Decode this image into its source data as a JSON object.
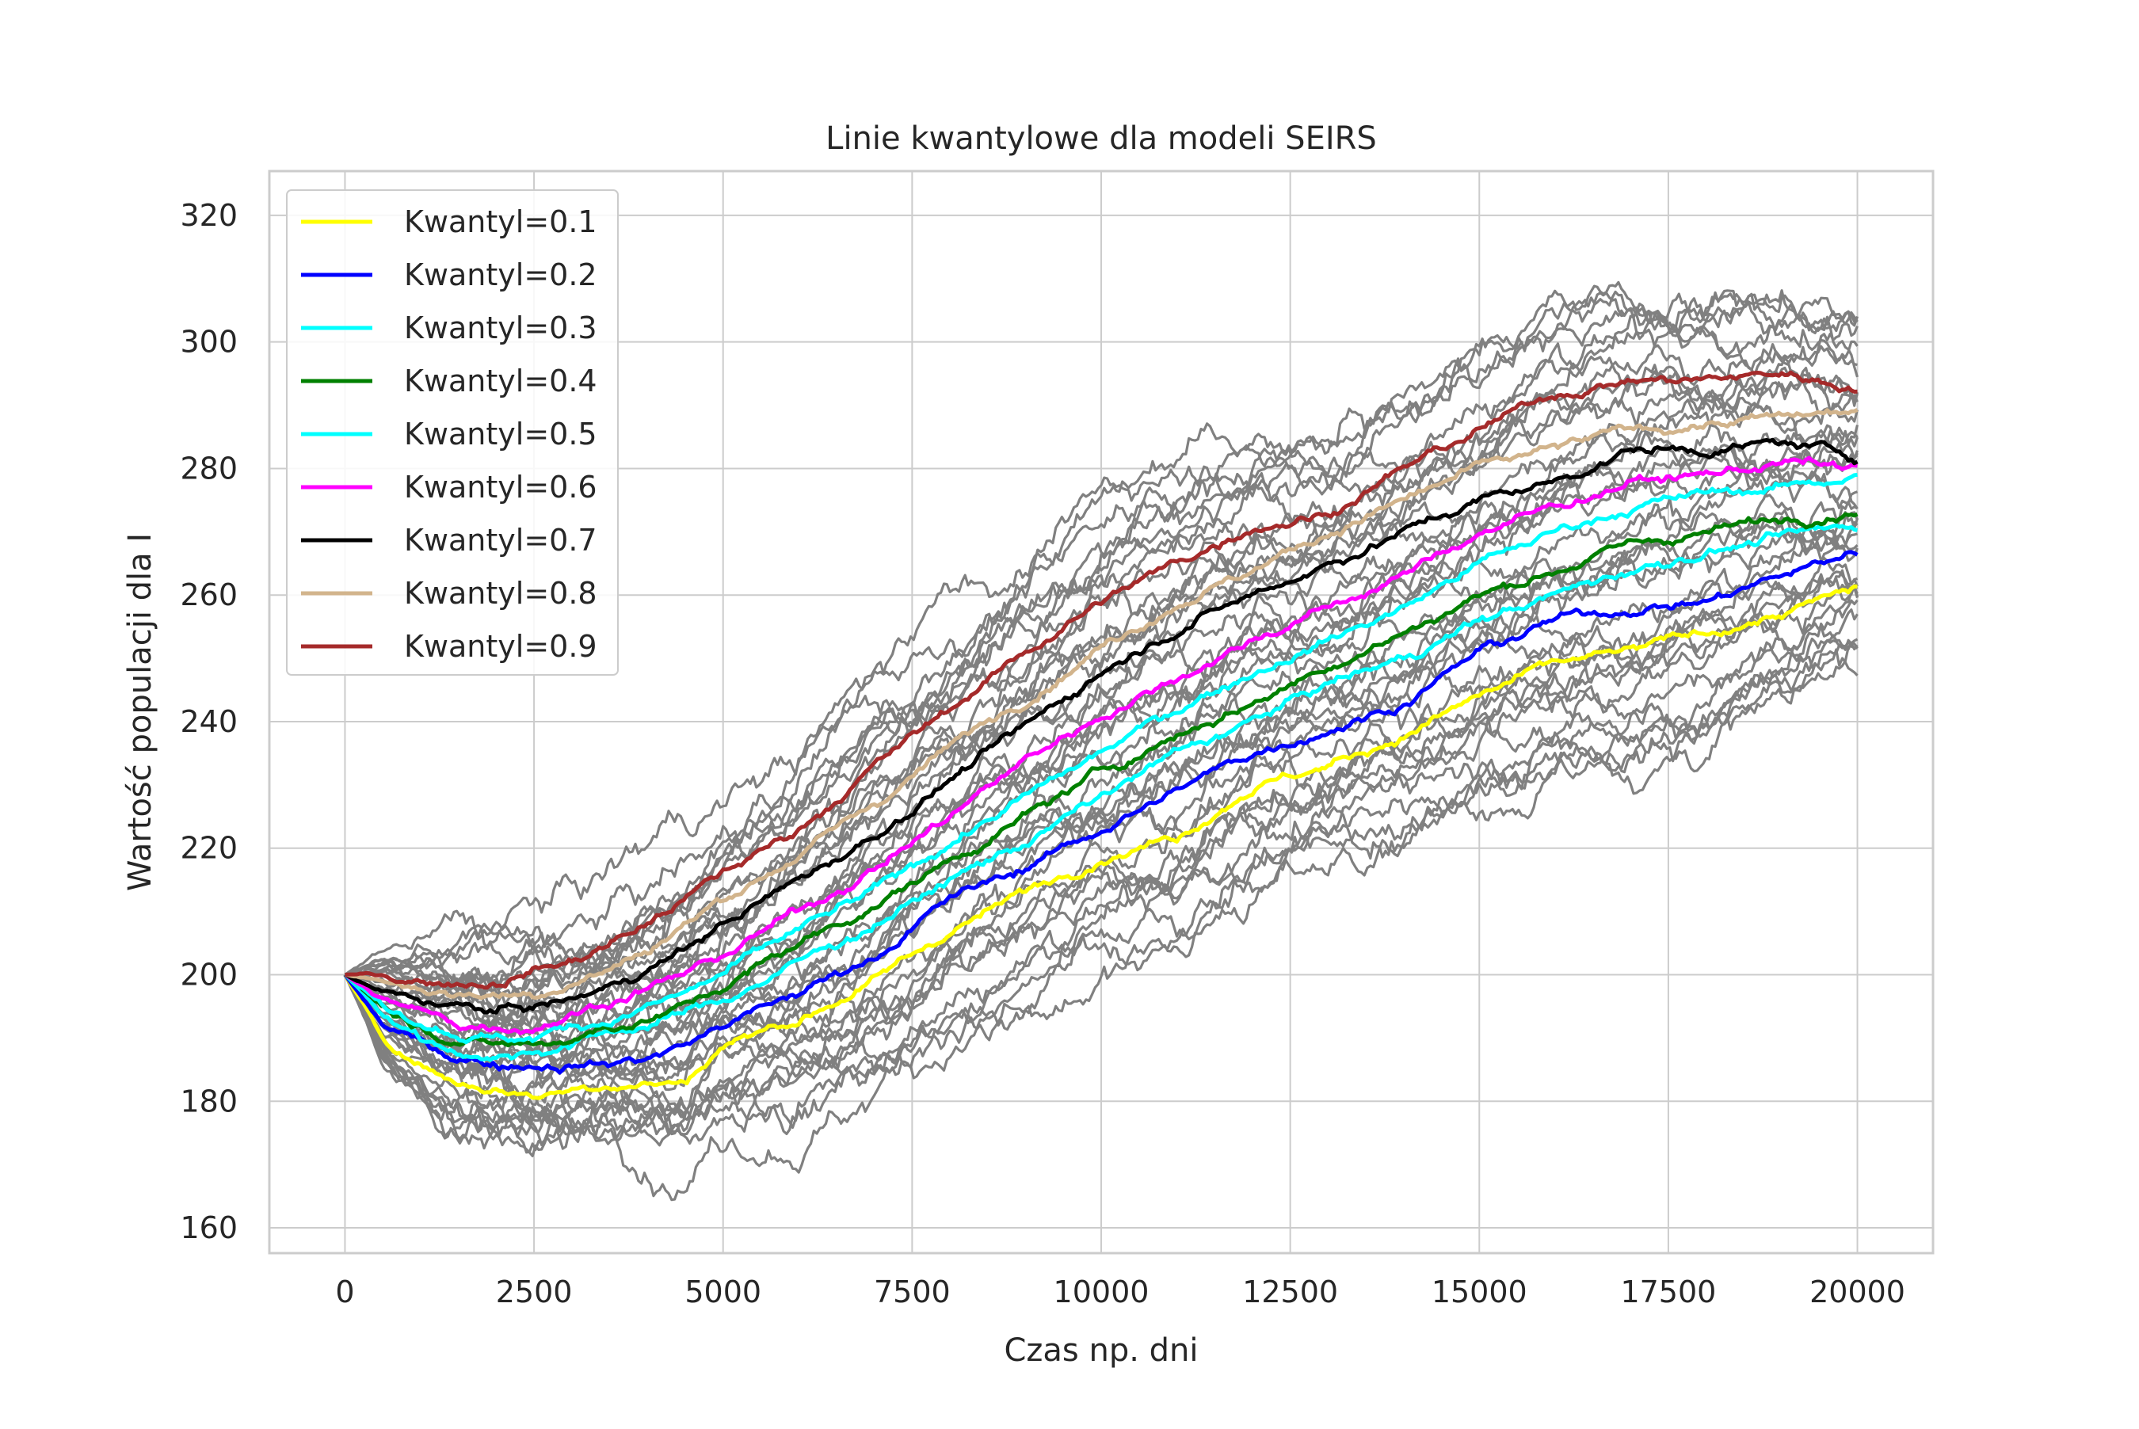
{
  "chart_data": {
    "type": "line",
    "title": "Linie kwantylowe dla modeli SEIRS",
    "xlabel": "Czas np. dni",
    "ylabel": "Wartość populacji dla I",
    "xlim": [
      -1000,
      21000
    ],
    "ylim": [
      156,
      327
    ],
    "xticks": [
      0,
      2500,
      5000,
      7500,
      10000,
      12500,
      15000,
      17500,
      20000
    ],
    "yticks": [
      160,
      180,
      200,
      220,
      240,
      260,
      280,
      300,
      320
    ],
    "xtick_labels": [
      "0",
      "2500",
      "5000",
      "7500",
      "10000",
      "12500",
      "15000",
      "17500",
      "20000"
    ],
    "ytick_labels": [
      "160",
      "180",
      "200",
      "220",
      "240",
      "260",
      "280",
      "300",
      "320"
    ],
    "grid": true,
    "legend_position": "upper-left",
    "background_simulations": {
      "color": "#808080",
      "count": 40,
      "description": ""
    },
    "x": [
      0,
      500,
      1000,
      1500,
      2000,
      2500,
      3000,
      3500,
      4000,
      4500,
      5000,
      6000,
      7000,
      8000,
      9000,
      10000,
      11000,
      12000,
      13000,
      14000,
      15000,
      16000,
      17000,
      18000,
      19000,
      20000
    ],
    "series": [
      {
        "name": "Kwantyl=0.1",
        "color": "#ffff00",
        "values": [
          200,
          190,
          186,
          183,
          182,
          181,
          182,
          183,
          183,
          183,
          189,
          193,
          199,
          207,
          213,
          219,
          222,
          230,
          233,
          238,
          244,
          249,
          251,
          254,
          257,
          261
        ]
      },
      {
        "name": "Kwantyl=0.2",
        "color": "#0000ff",
        "values": [
          200,
          192,
          189,
          187,
          186,
          186,
          186,
          186,
          187,
          189,
          192,
          197,
          203,
          212,
          217,
          223,
          229,
          235,
          239,
          243,
          251,
          256,
          258,
          259,
          263,
          267
        ]
      },
      {
        "name": "Kwantyl=0.3",
        "color": "#00ffff",
        "values": [
          200,
          194,
          190,
          188,
          187,
          188,
          189,
          191,
          192,
          194,
          196,
          202,
          208,
          215,
          221,
          228,
          235,
          240,
          246,
          250,
          256,
          260,
          264,
          267,
          269,
          271
        ]
      },
      {
        "name": "Kwantyl=0.4",
        "color": "#008000",
        "values": [
          200,
          195,
          192,
          190,
          189,
          189,
          190,
          192,
          193,
          195,
          198,
          205,
          211,
          218,
          225,
          232,
          238,
          243,
          249,
          254,
          260,
          264,
          268,
          270,
          272,
          274
        ]
      },
      {
        "name": "Kwantyl=0.5",
        "color": "#00ffff",
        "values": [
          200,
          195,
          193,
          191,
          190,
          190,
          192,
          193,
          195,
          197,
          200,
          207,
          213,
          221,
          228,
          235,
          242,
          248,
          253,
          258,
          265,
          270,
          274,
          276,
          277,
          279
        ]
      },
      {
        "name": "Kwantyl=0.6",
        "color": "#ff00ff",
        "values": [
          200,
          196,
          194,
          192,
          192,
          192,
          194,
          196,
          198,
          200,
          203,
          210,
          217,
          225,
          234,
          241,
          247,
          253,
          258,
          263,
          270,
          274,
          278,
          279,
          281,
          280
        ]
      },
      {
        "name": "Kwantyl=0.7",
        "color": "#000000",
        "values": [
          200,
          197,
          196,
          195,
          194,
          195,
          196,
          198,
          201,
          204,
          208,
          215,
          222,
          231,
          239,
          248,
          255,
          260,
          265,
          270,
          275,
          278,
          283,
          283,
          284,
          282
        ]
      },
      {
        "name": "Kwantyl=0.8",
        "color": "#d2b48c",
        "values": [
          200,
          199,
          198,
          197,
          197,
          197,
          199,
          201,
          204,
          208,
          212,
          219,
          227,
          236,
          244,
          252,
          259,
          264,
          270,
          275,
          280,
          283,
          286,
          287,
          288,
          289
        ]
      },
      {
        "name": "Kwantyl=0.9",
        "color": "#a52a2a",
        "values": [
          200,
          200,
          199,
          199,
          199,
          201,
          202,
          205,
          208,
          212,
          216,
          223,
          233,
          242,
          251,
          259,
          265,
          271,
          273,
          280,
          286,
          292,
          294,
          294,
          295,
          293
        ]
      }
    ]
  }
}
